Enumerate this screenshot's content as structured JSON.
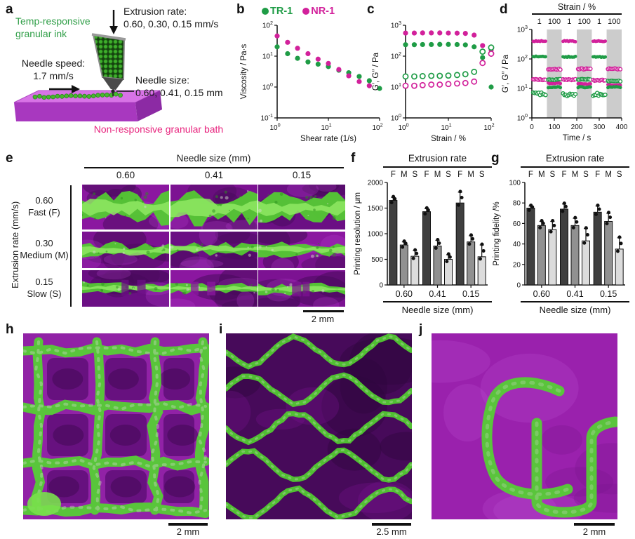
{
  "colors": {
    "green": "#1f9c46",
    "magenta": "#d2219b",
    "green_text": "#2f9e47",
    "pink_text": "#e8247e",
    "band": "#cccccc",
    "axis": "#111111",
    "bar_F": "#3f3f3f",
    "bar_M": "#919191",
    "bar_S": "#dcdcdc",
    "print_green": "#55cc34",
    "bath_purple": "#9122a6"
  },
  "panels": {
    "a": {
      "label": "a",
      "ink": "Temp-responsive granular ink",
      "extrusion_rate_title": "Extrusion rate:",
      "extrusion_rate_values": "0.60, 0.30, 0.15 mm/s",
      "needle_speed_title": "Needle speed:",
      "needle_speed_value": "1.7 mm/s",
      "needle_size_title": "Needle size:",
      "needle_size_values": "0.60, 0.41, 0.15 mm",
      "bath": "Non-responsive granular bath"
    },
    "b": {
      "label": "b",
      "legend": [
        {
          "name": "TR-1",
          "color": "green"
        },
        {
          "name": "NR-1",
          "color": "magenta"
        }
      ]
    },
    "c": {
      "label": "c"
    },
    "d": {
      "label": "d"
    },
    "e": {
      "label": "e",
      "col_header": "Needle size (mm)",
      "columns": [
        "0.60",
        "0.41",
        "0.15"
      ],
      "row_axis_label": "Extrusion rate (mm/s)",
      "rows": [
        {
          "value": "0.60",
          "name": "Fast (F)"
        },
        {
          "value": "0.30",
          "name": "Medium (M)"
        },
        {
          "value": "0.15",
          "name": "Slow (S)"
        }
      ],
      "scalebar": "2 mm"
    },
    "f": {
      "label": "f"
    },
    "g": {
      "label": "g"
    },
    "h": {
      "label": "h",
      "scalebar": "2 mm"
    },
    "i": {
      "label": "i",
      "scalebar": "2.5 mm"
    },
    "j": {
      "label": "j",
      "scalebar": "2 mm"
    }
  },
  "chart_data": [
    {
      "id": "b",
      "type": "scatter",
      "xscale": "log",
      "yscale": "log",
      "xlabel": "Shear rate (1/s)",
      "ylabel": "Viscosity / Pa·s",
      "xlim": [
        1,
        100
      ],
      "ylim": [
        0.1,
        100
      ],
      "series": [
        {
          "name": "TR-1",
          "color": "green",
          "open": false,
          "x": [
            1,
            1.6,
            2.5,
            4,
            6.3,
            10,
            16,
            25,
            40,
            63,
            100
          ],
          "y": [
            20,
            12,
            8.5,
            6.5,
            5.5,
            4.6,
            3.5,
            2.9,
            2.2,
            1.6,
            0.9
          ]
        },
        {
          "name": "NR-1",
          "color": "magenta",
          "open": false,
          "x": [
            1,
            1.6,
            2.5,
            4,
            6.3,
            10,
            16,
            25,
            40,
            63
          ],
          "y": [
            45,
            28,
            18,
            12,
            8,
            5.8,
            3.7,
            2.3,
            1.5,
            1.1
          ]
        }
      ]
    },
    {
      "id": "c",
      "type": "scatter",
      "xscale": "log",
      "yscale": "log",
      "xlabel": "Strain / %",
      "ylabel": "G′, G″ / Pa",
      "xlim": [
        1,
        100
      ],
      "ylim": [
        1,
        1000
      ],
      "x": [
        1,
        1.6,
        2.5,
        4,
        6.3,
        10,
        16,
        25,
        40,
        63,
        100
      ],
      "series": [
        {
          "name": "G′ NR-1",
          "color": "magenta",
          "open": false,
          "y": [
            560,
            560,
            565,
            565,
            565,
            560,
            555,
            545,
            480,
            220,
            160
          ]
        },
        {
          "name": "G′ TR-1",
          "color": "green",
          "open": false,
          "y": [
            235,
            235,
            238,
            238,
            240,
            240,
            238,
            232,
            200,
            90,
            10
          ]
        },
        {
          "name": "G″ TR-1",
          "color": "green",
          "open": true,
          "y": [
            22,
            22,
            22.5,
            23,
            23,
            23.5,
            24.5,
            26,
            31,
            140,
            190
          ]
        },
        {
          "name": "G″ NR-1",
          "color": "magenta",
          "open": true,
          "y": [
            11,
            11,
            11.5,
            12,
            12,
            12.5,
            13,
            13.5,
            15,
            60,
            120
          ]
        }
      ]
    },
    {
      "id": "d",
      "type": "timeseries",
      "header": "Strain / %",
      "xlabel": "Time / s",
      "ylabel": "G′, G″ / Pa",
      "xlim": [
        0,
        400
      ],
      "ylim": [
        1,
        1000
      ],
      "xticks": [
        0,
        100,
        200,
        300,
        400
      ],
      "series_style": [
        {
          "key": "gp_nr",
          "name": "G′ NR-1",
          "color": "magenta",
          "open": false
        },
        {
          "key": "gp_tr",
          "name": "G′ TR-1",
          "color": "green",
          "open": false
        },
        {
          "key": "gpp_nr",
          "name": "G″ NR-1",
          "color": "magenta",
          "open": true
        },
        {
          "key": "gpp_tr",
          "name": "G″ TR-1",
          "color": "green",
          "open": true
        }
      ],
      "segments": [
        {
          "strain": "1",
          "t": [
            0,
            67
          ],
          "shaded": false,
          "values": {
            "gp_nr": 400,
            "gp_tr": 120,
            "gpp_nr": 20,
            "gpp_tr": 6.5
          }
        },
        {
          "strain": "100",
          "t": [
            67,
            133
          ],
          "shaded": true,
          "values": {
            "gp_nr": 15,
            "gp_tr": 11,
            "gpp_nr": 45,
            "gpp_tr": 20
          }
        },
        {
          "strain": "1",
          "t": [
            133,
            200
          ],
          "shaded": false,
          "values": {
            "gp_nr": 400,
            "gp_tr": 118,
            "gpp_nr": 20,
            "gpp_tr": 6
          }
        },
        {
          "strain": "100",
          "t": [
            200,
            267
          ],
          "shaded": true,
          "values": {
            "gp_nr": 14,
            "gp_tr": 11,
            "gpp_nr": 46,
            "gpp_tr": 20
          }
        },
        {
          "strain": "1",
          "t": [
            267,
            333
          ],
          "shaded": false,
          "values": {
            "gp_nr": 400,
            "gp_tr": 117,
            "gpp_nr": 19,
            "gpp_tr": 6.5
          }
        },
        {
          "strain": "100",
          "t": [
            333,
            400
          ],
          "shaded": true,
          "values": {
            "gp_nr": 13,
            "gp_tr": 11,
            "gpp_nr": 46,
            "gpp_tr": 18
          }
        }
      ]
    },
    {
      "id": "f",
      "type": "bar",
      "title": "Extrusion rate",
      "group_sublabels": [
        "F",
        "M",
        "S"
      ],
      "categories": [
        "0.60",
        "0.41",
        "0.15"
      ],
      "xlabel": "Needle size (mm)",
      "ylabel": "Printing resolution / μm",
      "ylim": [
        0,
        2000
      ],
      "yticks": [
        0,
        500,
        1000,
        1500,
        2000
      ],
      "series": [
        {
          "name": "F",
          "color": "bar_F",
          "values": [
            1650,
            1430,
            1600
          ],
          "errors": [
            60,
            60,
            210
          ]
        },
        {
          "name": "M",
          "color": "bar_M",
          "values": [
            780,
            760,
            840
          ],
          "errors": [
            60,
            110,
            120
          ]
        },
        {
          "name": "S",
          "color": "bar_S",
          "values": [
            560,
            500,
            550
          ],
          "errors": [
            110,
            90,
            230
          ]
        }
      ]
    },
    {
      "id": "g",
      "type": "bar",
      "title": "Extrusion rate",
      "group_sublabels": [
        "F",
        "M",
        "S"
      ],
      "categories": [
        "0.60",
        "0.41",
        "0.15"
      ],
      "xlabel": "Needle size (mm)",
      "ylabel": "Printing fidelity /%",
      "ylim": [
        0,
        100
      ],
      "yticks": [
        0,
        20,
        40,
        60,
        80,
        100
      ],
      "series": [
        {
          "name": "F",
          "color": "bar_F",
          "values": [
            75,
            74,
            71
          ],
          "errors": [
            2,
            5,
            6
          ]
        },
        {
          "name": "M",
          "color": "bar_M",
          "values": [
            58,
            58,
            62
          ],
          "errors": [
            4,
            7,
            8
          ]
        },
        {
          "name": "S",
          "color": "bar_S",
          "values": [
            54,
            43,
            35
          ],
          "errors": [
            8,
            12,
            11
          ]
        }
      ]
    }
  ]
}
